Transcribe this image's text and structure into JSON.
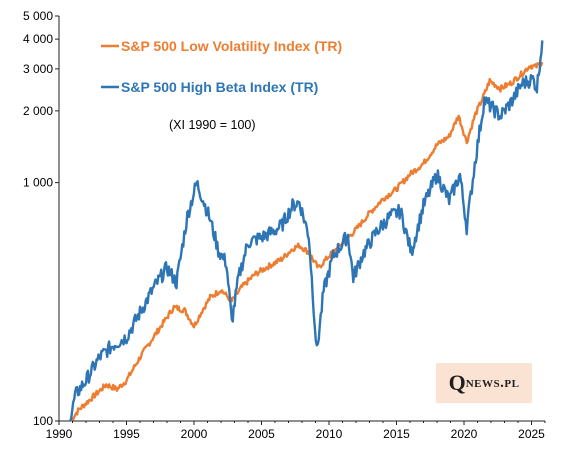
{
  "chart_data": {
    "type": "line",
    "title": "",
    "xlabel": "",
    "ylabel": "",
    "y_scale": "log",
    "ylim": [
      100,
      5000
    ],
    "xlim": [
      1990,
      2026
    ],
    "x_ticks": [
      1990,
      1995,
      2000,
      2005,
      2010,
      2015,
      2020,
      2025
    ],
    "x_tick_labels": [
      "1990",
      "1995",
      "2000",
      "2005",
      "2010",
      "2015",
      "2020",
      "2025"
    ],
    "y_ticks": [
      100,
      1000,
      2000,
      3000,
      4000,
      5000
    ],
    "y_tick_labels": [
      "100",
      "1 000",
      "2 000",
      "3 000",
      "4 000",
      "5 000"
    ],
    "grid": false,
    "legend_position": "top-left",
    "annotation": "(XI 1990 = 100)",
    "series": [
      {
        "name": "S&P 500 Low Volatility Index (TR)",
        "color": "#ed7d31",
        "points": [
          [
            1990.83,
            100
          ],
          [
            1991.5,
            112
          ],
          [
            1992.5,
            126
          ],
          [
            1993.5,
            142
          ],
          [
            1994.3,
            136
          ],
          [
            1995.0,
            148
          ],
          [
            1996.0,
            185
          ],
          [
            1997.0,
            225
          ],
          [
            1998.0,
            272
          ],
          [
            1998.5,
            300
          ],
          [
            1999.3,
            292
          ],
          [
            2000.0,
            250
          ],
          [
            2000.6,
            290
          ],
          [
            2001.2,
            330
          ],
          [
            2002.0,
            355
          ],
          [
            2002.8,
            318
          ],
          [
            2003.5,
            362
          ],
          [
            2004.5,
            412
          ],
          [
            2005.5,
            445
          ],
          [
            2006.5,
            478
          ],
          [
            2007.3,
            528
          ],
          [
            2007.8,
            545
          ],
          [
            2008.5,
            510
          ],
          [
            2009.2,
            438
          ],
          [
            2010.0,
            492
          ],
          [
            2011.0,
            558
          ],
          [
            2012.0,
            635
          ],
          [
            2013.0,
            745
          ],
          [
            2014.0,
            855
          ],
          [
            2015.0,
            940
          ],
          [
            2016.0,
            1085
          ],
          [
            2017.0,
            1205
          ],
          [
            2018.0,
            1440
          ],
          [
            2018.9,
            1565
          ],
          [
            2019.6,
            1910
          ],
          [
            2020.2,
            1480
          ],
          [
            2020.8,
            1905
          ],
          [
            2021.5,
            2340
          ],
          [
            2021.9,
            2675
          ],
          [
            2022.7,
            2480
          ],
          [
            2023.5,
            2620
          ],
          [
            2024.3,
            2870
          ],
          [
            2024.9,
            3100
          ],
          [
            2025.3,
            3060
          ],
          [
            2025.8,
            3200
          ]
        ]
      },
      {
        "name": "S&P 500 High Beta Index (TR)",
        "color": "#2e75b6",
        "points": [
          [
            1990.83,
            100
          ],
          [
            1991.2,
            128
          ],
          [
            1992.0,
            148
          ],
          [
            1993.0,
            185
          ],
          [
            1994.0,
            208
          ],
          [
            1995.0,
            225
          ],
          [
            1996.0,
            285
          ],
          [
            1997.0,
            360
          ],
          [
            1998.0,
            440
          ],
          [
            1998.7,
            380
          ],
          [
            1999.5,
            720
          ],
          [
            2000.2,
            1000
          ],
          [
            2000.6,
            870
          ],
          [
            2001.2,
            700
          ],
          [
            2001.8,
            520
          ],
          [
            2002.4,
            460
          ],
          [
            2002.8,
            260
          ],
          [
            2003.3,
            400
          ],
          [
            2004.0,
            560
          ],
          [
            2005.0,
            590
          ],
          [
            2005.8,
            620
          ],
          [
            2006.5,
            660
          ],
          [
            2007.3,
            800
          ],
          [
            2007.8,
            830
          ],
          [
            2008.5,
            600
          ],
          [
            2009.1,
            195
          ],
          [
            2009.6,
            350
          ],
          [
            2010.3,
            490
          ],
          [
            2011.4,
            600
          ],
          [
            2011.8,
            400
          ],
          [
            2012.5,
            500
          ],
          [
            2013.5,
            620
          ],
          [
            2014.5,
            720
          ],
          [
            2015.3,
            760
          ],
          [
            2016.1,
            510
          ],
          [
            2017.0,
            800
          ],
          [
            2018.0,
            1080
          ],
          [
            2018.9,
            840
          ],
          [
            2019.7,
            1080
          ],
          [
            2020.2,
            650
          ],
          [
            2020.8,
            1200
          ],
          [
            2021.5,
            2220
          ],
          [
            2022.7,
            1900
          ],
          [
            2023.5,
            2180
          ],
          [
            2024.3,
            2600
          ],
          [
            2025.1,
            2720
          ],
          [
            2025.4,
            2500
          ],
          [
            2025.8,
            3950
          ]
        ]
      }
    ]
  },
  "logo": {
    "q": "Q",
    "rest": "news.pl"
  }
}
